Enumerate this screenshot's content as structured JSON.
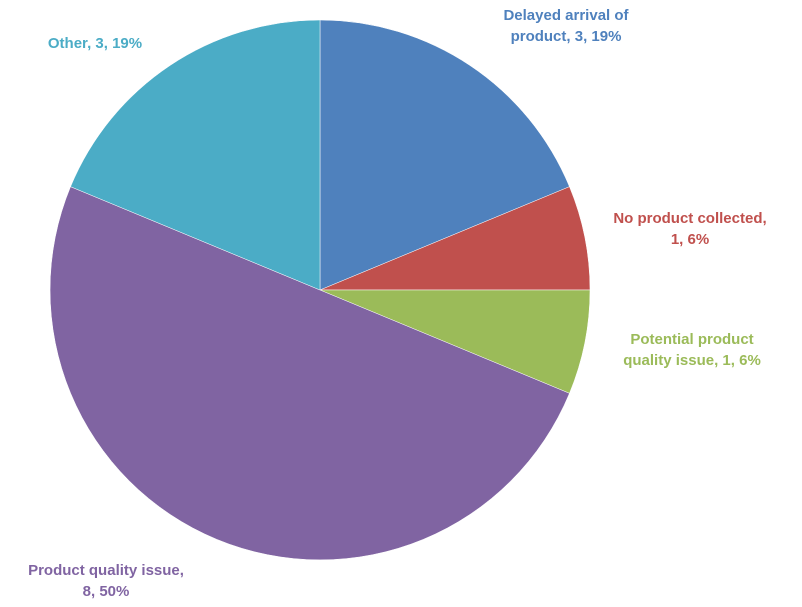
{
  "chart_data": {
    "type": "pie",
    "title": "",
    "start_angle_deg": 0,
    "direction": "clockwise",
    "slices": [
      {
        "label": "Delayed arrival of product",
        "value": 3,
        "percent": "19%",
        "color": "#4f81bd",
        "label_lines": [
          "Delayed arrival of",
          "product, 3, 19%"
        ]
      },
      {
        "label": "No product collected",
        "value": 1,
        "percent": "6%",
        "color": "#c0504d",
        "label_lines": [
          "No product collected,",
          "1, 6%"
        ]
      },
      {
        "label": "Potential product quality issue",
        "value": 1,
        "percent": "6%",
        "color": "#9bbb59",
        "label_lines": [
          "Potential product",
          "quality issue, 1, 6%"
        ]
      },
      {
        "label": "Product quality issue",
        "value": 8,
        "percent": "50%",
        "color": "#8064a2",
        "label_lines": [
          "Product quality issue,",
          "8, 50%"
        ]
      },
      {
        "label": "Other",
        "value": 3,
        "percent": "19%",
        "color": "#4bacc6",
        "label_lines": [
          "Other, 3, 19%"
        ]
      }
    ]
  }
}
